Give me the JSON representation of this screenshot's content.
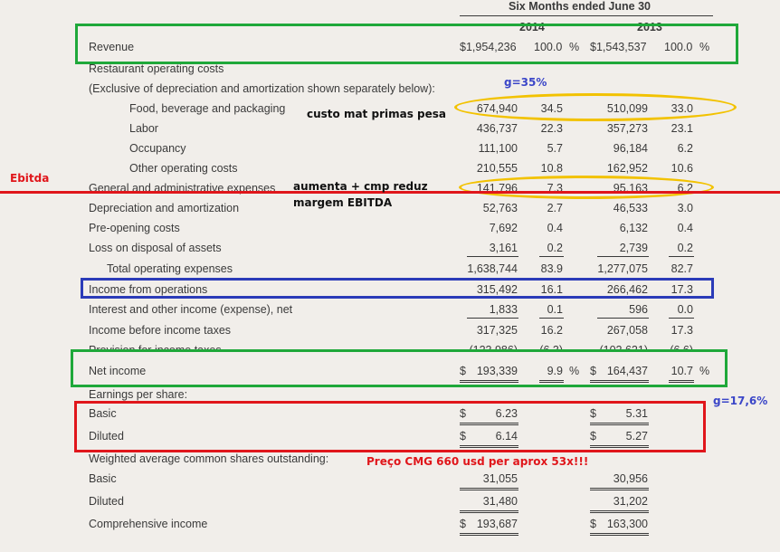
{
  "header": {
    "period": "Six Months ended June 30",
    "year_2014": "2014",
    "year_2013": "2013"
  },
  "rows": {
    "revenue": {
      "label": "Revenue",
      "v14_dollar": "$1,954,236",
      "p14": "100.0",
      "pct14": "%",
      "v13_dollar": "$1,543,537",
      "p13": "100.0",
      "pct13": "%"
    },
    "restaurant_costs": {
      "label": "Restaurant operating costs"
    },
    "exclusive": {
      "label": "(Exclusive of depreciation and amortization shown separately below):"
    },
    "food": {
      "label": "Food, beverage and packaging",
      "v14": "674,940",
      "p14": "34.5",
      "v13": "510,099",
      "p13": "33.0"
    },
    "labor": {
      "label": "Labor",
      "v14": "436,737",
      "p14": "22.3",
      "v13": "357,273",
      "p13": "23.1"
    },
    "occupancy": {
      "label": "Occupancy",
      "v14": "111,100",
      "p14": "5.7",
      "v13": "96,184",
      "p13": "6.2"
    },
    "other_costs": {
      "label": "Other operating costs",
      "v14": "210,555",
      "p14": "10.8",
      "v13": "162,952",
      "p13": "10.6"
    },
    "ga": {
      "label": "General and administrative expenses",
      "v14": "141,796",
      "p14": "7.3",
      "v13": "95,163",
      "p13": "6.2"
    },
    "depreciation": {
      "label": "Depreciation and amortization",
      "v14": "52,763",
      "p14": "2.7",
      "v13": "46,533",
      "p13": "3.0"
    },
    "preopening": {
      "label": "Pre-opening costs",
      "v14": "7,692",
      "p14": "0.4",
      "v13": "6,132",
      "p13": "0.4"
    },
    "loss_disposal": {
      "label": "Loss on disposal of assets",
      "v14": "3,161",
      "p14": "0.2",
      "v13": "2,739",
      "p13": "0.2"
    },
    "total_opex": {
      "label": "Total operating expenses",
      "v14": "1,638,744",
      "p14": "83.9",
      "v13": "1,277,075",
      "p13": "82.7"
    },
    "income_ops": {
      "label": "Income from operations",
      "v14": "315,492",
      "p14": "16.1",
      "v13": "266,462",
      "p13": "17.3"
    },
    "interest": {
      "label": "Interest and other income (expense), net",
      "v14": "1,833",
      "p14": "0.1",
      "v13": "596",
      "p13": "0.0"
    },
    "income_before_tax": {
      "label": "Income before income taxes",
      "v14": "317,325",
      "p14": "16.2",
      "v13": "267,058",
      "p13": "17.3"
    },
    "provision": {
      "label": "Provision for income taxes",
      "v14": "(123,986)",
      "p14": "(6.3)",
      "v13": "(102,621)",
      "p13": "(6.6)"
    },
    "net_income": {
      "label": "Net income",
      "d14": "$",
      "v14": "193,339",
      "p14": "9.9",
      "pct14": "%",
      "d13": "$",
      "v13": "164,437",
      "p13": "10.7",
      "pct13": "%"
    },
    "eps": {
      "label": "Earnings per share:"
    },
    "eps_basic": {
      "label": "Basic",
      "d14": "$",
      "v14": "6.23",
      "d13": "$",
      "v13": "5.31"
    },
    "eps_diluted": {
      "label": "Diluted",
      "d14": "$",
      "v14": "6.14",
      "d13": "$",
      "v13": "5.27"
    },
    "weighted": {
      "label": "Weighted average common shares outstanding:"
    },
    "w_basic": {
      "label": "Basic",
      "v14": "31,055",
      "v13": "30,956"
    },
    "w_diluted": {
      "label": "Diluted",
      "v14": "31,480",
      "v13": "31,202"
    },
    "comprehensive": {
      "label": "Comprehensive income",
      "d14": "$",
      "v14": "193,687",
      "d13": "$",
      "v13": "163,300"
    }
  },
  "annotations": {
    "g35": "g=35%",
    "custo": "custo mat primas pesa",
    "ebitda": "Ebitda",
    "aumenta": "aumenta + cmp reduz",
    "margem": "margem EBITDA",
    "g17": "g=17,6%",
    "preco": "Preço CMG 660 usd    per aprox 53x!!!"
  },
  "colors": {
    "green": "#1fa83a",
    "yellow": "#f2c200",
    "blue": "#2b3bb8",
    "red": "#e0161b",
    "note_blue": "#3b46c8",
    "note_red": "#e0161b"
  }
}
